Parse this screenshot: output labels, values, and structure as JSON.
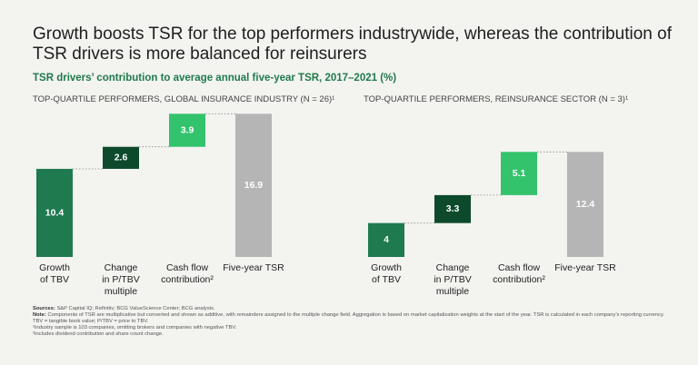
{
  "title": "Growth boosts TSR for the top performers industrywide, whereas the contribution of TSR drivers is more balanced for reinsurers",
  "subtitle": "TSR drivers’ contribution to average annual five-year TSR, 2017–2021 (%)",
  "chart_data": [
    {
      "type": "waterfall",
      "title": "TOP-QUARTILE PERFORMERS, GLOBAL INSURANCE INDUSTRY (N = 26)¹",
      "categories": [
        "Growth\nof TBV",
        "Change\nin P/TBV\nmultiple",
        "Cash flow\ncontribution²",
        "Five-year TSR"
      ],
      "values": [
        10.4,
        2.6,
        3.9,
        16.9
      ],
      "colors": [
        "#1f7a4f",
        "#0c4a2b",
        "#33c36c",
        "#b5b5b5"
      ]
    },
    {
      "type": "waterfall",
      "title": "TOP-QUARTILE PERFORMERS, REINSURANCE SECTOR (N = 3)¹",
      "categories": [
        "Growth\nof TBV",
        "Change\nin P/TBV\nmultiple",
        "Cash flow\ncontribution²",
        "Five-year TSR"
      ],
      "values": [
        4.0,
        3.3,
        5.1,
        12.4
      ],
      "colors": [
        "#1f7a4f",
        "#0c4a2b",
        "#33c36c",
        "#b5b5b5"
      ]
    }
  ],
  "notes": [
    {
      "label": "Sources:",
      "text": "S&P Capital IQ; Refinitiv; BCG ValueScience Center; BCG analysis."
    },
    {
      "label": "Note:",
      "text": "Components of TSR are multiplicative but converted and shown as additive, with remainders assigned to the multiple change field. Aggregation is based on market capitalization weights at the start of the year. TSR is calculated in each company’s reporting currency. TBV = tangible book value; P/TBV = price to TBV."
    },
    {
      "text": "¹Industry sample is 103 companies, omitting brokers and companies with negative TBV."
    },
    {
      "text": "²Includes dividend contribution and share count change."
    }
  ]
}
